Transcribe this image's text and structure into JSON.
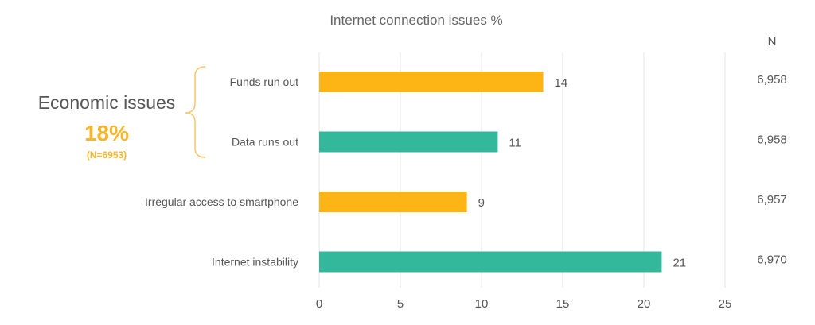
{
  "chart_data": {
    "type": "bar",
    "orientation": "horizontal",
    "title": "Internet connection issues %",
    "categories": [
      "Funds run out",
      "Data runs out",
      "Irregular access to smartphone",
      "Internet instability"
    ],
    "values": [
      13.8,
      11.0,
      9.1,
      21.1
    ],
    "data_labels": [
      "14",
      "11",
      "9",
      "21"
    ],
    "bar_colors": [
      "#FDB515",
      "#33B89C",
      "#FDB515",
      "#33B89C"
    ],
    "n_header": "N",
    "n_values": [
      "6,958",
      "6,958",
      "6,957",
      "6,970"
    ],
    "xlim": [
      0,
      25
    ],
    "xticks": [
      "0",
      "5",
      "10",
      "15",
      "20",
      "25"
    ],
    "grid": true,
    "annotation": {
      "title": "Economic issues",
      "value": "18%",
      "n": "(N=6953)",
      "color": "#F7B52C",
      "groups": [
        "Funds run out",
        "Data runs out"
      ]
    }
  }
}
